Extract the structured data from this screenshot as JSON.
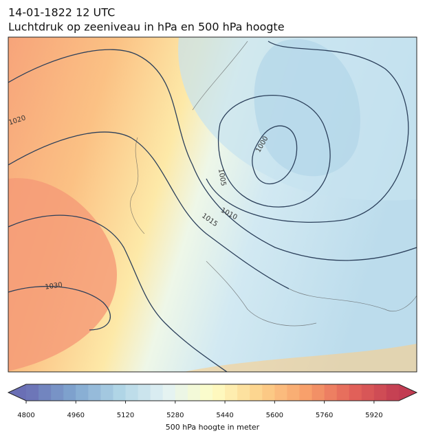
{
  "header": {
    "lines": [
      "14-01-1822 12 UTC",
      "Luchtdruk op zeeniveau in hPa en 500 hPa hoogte"
    ]
  },
  "map": {
    "isobar_labels": [
      "1020",
      "1030",
      "1015",
      "1010",
      "1000",
      "1005"
    ]
  },
  "colorbar": {
    "label": "500 hPa hoogte in meter",
    "ticks": [
      4800,
      4960,
      5120,
      5280,
      5440,
      5600,
      5760,
      5920
    ],
    "range": [
      4800,
      6000
    ],
    "step": 40,
    "colors": [
      "#6a6fb5",
      "#7fa5cf",
      "#b0d5e6",
      "#e3f2f4",
      "#fefec6",
      "#fdd38c",
      "#f8a06b",
      "#e3635a",
      "#c23c52"
    ]
  }
}
